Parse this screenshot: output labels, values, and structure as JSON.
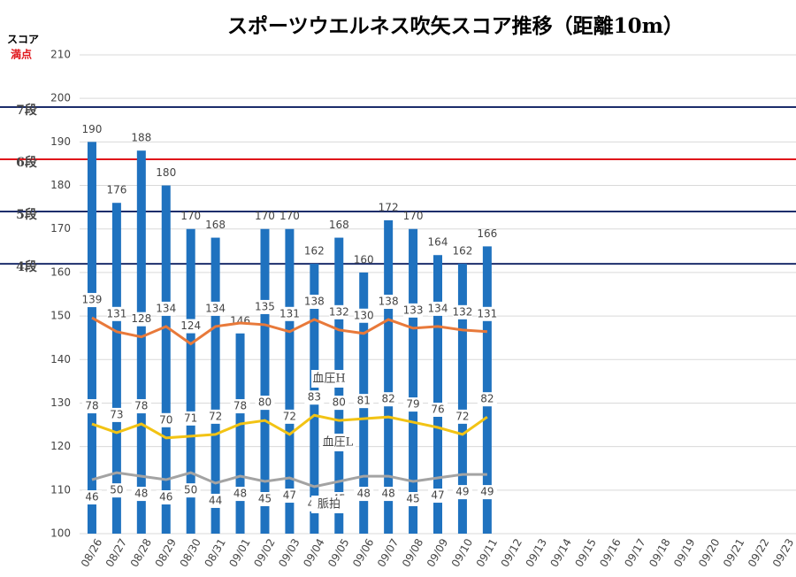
{
  "chart_data": {
    "type": "bar",
    "title": "スポーツウエルネス吹矢スコア推移（距離10m）",
    "y_label": "スコア",
    "y_label_note": "満点",
    "categories": [
      "08/26",
      "08/27",
      "08/28",
      "08/29",
      "08/30",
      "08/31",
      "09/01",
      "09/02",
      "09/03",
      "09/04",
      "09/05",
      "09/06",
      "09/07",
      "09/08",
      "09/09",
      "09/10",
      "09/11",
      "09/12",
      "09/13",
      "09/14",
      "09/15",
      "09/16",
      "09/17",
      "09/18",
      "09/19",
      "09/20",
      "09/21",
      "09/22",
      "09/23"
    ],
    "values": [
      190,
      176,
      188,
      180,
      170,
      168,
      146,
      170,
      170,
      162,
      168,
      160,
      172,
      170,
      164,
      162,
      166,
      null,
      null,
      null,
      null,
      null,
      null,
      null,
      null,
      null,
      null,
      null,
      null
    ],
    "color": "#1f72bf",
    "ylim": [
      100,
      210
    ],
    "yticks": [
      100,
      110,
      120,
      130,
      140,
      150,
      160,
      170,
      180,
      190,
      200,
      210
    ],
    "y2lim": [
      15,
      290
    ],
    "grid": true,
    "reference_lines": [
      {
        "label": "7段",
        "value": 198,
        "color": "#1c2d6b"
      },
      {
        "label": "6段",
        "value": 186,
        "color": "#e0161b"
      },
      {
        "label": "5段",
        "value": 174,
        "color": "#1c2d6b"
      },
      {
        "label": "4段",
        "value": 162,
        "color": "#1c2d6b"
      }
    ],
    "series": [
      {
        "name": "血圧H",
        "color": "#e8793a",
        "axis": "y2",
        "values": [
          139,
          131,
          128,
          134,
          124,
          134,
          136,
          135,
          131,
          138,
          132,
          130,
          138,
          133,
          134,
          132,
          131,
          null,
          null,
          null,
          null,
          null,
          null,
          null,
          null,
          null,
          null,
          null,
          null
        ],
        "value_labels": [
          "139",
          "131",
          "128",
          "134",
          "124",
          "134",
          null,
          "135",
          "131",
          "138",
          "132",
          "130",
          "138",
          "133",
          "134",
          "132",
          "131",
          null,
          null,
          null,
          null,
          null,
          null,
          null,
          null,
          null,
          null,
          null,
          null
        ]
      },
      {
        "name": "血圧L",
        "color": "#f2c314",
        "axis": "y2",
        "values": [
          78,
          73,
          78,
          70,
          71,
          72,
          78,
          80,
          72,
          83,
          80,
          81,
          82,
          79,
          76,
          72,
          82,
          null,
          null,
          null,
          null,
          null,
          null,
          null,
          null,
          null,
          null,
          null,
          null
        ]
      },
      {
        "name": "脈拍",
        "color": "#a3a3a3",
        "axis": "y2",
        "values": [
          46,
          50,
          48,
          46,
          50,
          44,
          48,
          45,
          47,
          42,
          45,
          48,
          48,
          45,
          47,
          49,
          49,
          null,
          null,
          null,
          null,
          null,
          null,
          null,
          null,
          null,
          null,
          null,
          null
        ]
      }
    ]
  }
}
